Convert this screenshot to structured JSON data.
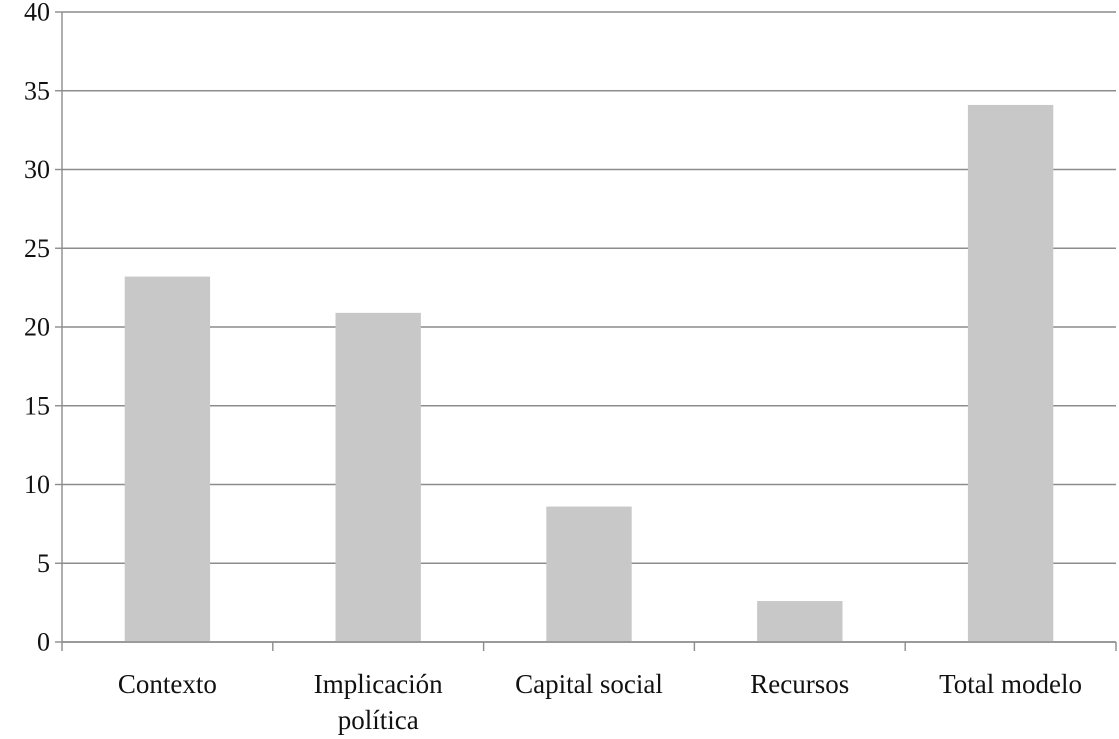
{
  "chart_data": {
    "type": "bar",
    "title": "",
    "xlabel": "",
    "ylabel": "",
    "categories": [
      [
        "Contexto"
      ],
      [
        "Implicación",
        "política"
      ],
      [
        "Capital social"
      ],
      [
        "Recursos"
      ],
      [
        "Total modelo"
      ]
    ],
    "values": [
      23.2,
      20.9,
      8.6,
      2.6,
      34.1
    ],
    "ylim": [
      0,
      40
    ],
    "yticks": [
      0,
      5,
      10,
      15,
      20,
      25,
      30,
      35,
      40
    ],
    "grid": true,
    "legend": "none",
    "colors": {
      "bar": "#c8c8c8",
      "grid": "#8c8c8c",
      "axis": "#8c8c8c",
      "text": "#111111"
    }
  }
}
